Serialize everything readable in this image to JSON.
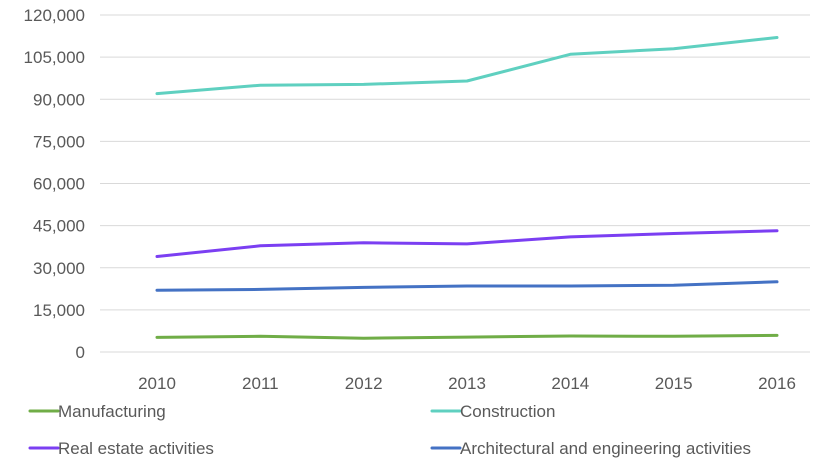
{
  "chart_data": {
    "type": "line",
    "title": "",
    "xlabel": "",
    "ylabel": "",
    "x": [
      "2010",
      "2011",
      "2012",
      "2013",
      "2014",
      "2015",
      "2016"
    ],
    "ylim": [
      0,
      120000
    ],
    "yticks": [
      0,
      15000,
      30000,
      45000,
      60000,
      75000,
      90000,
      105000,
      120000
    ],
    "ytick_labels": [
      "0",
      "15,000",
      "30,000",
      "45,000",
      "60,000",
      "75,000",
      "90,000",
      "105,000",
      "120,000"
    ],
    "grid": true,
    "legend_position": "bottom",
    "series": [
      {
        "name": "Manufacturing",
        "color": "#70ad47",
        "values": [
          5200,
          5600,
          4900,
          5300,
          5700,
          5600,
          5900
        ]
      },
      {
        "name": "Construction",
        "color": "#5fd0c0",
        "values": [
          92000,
          95000,
          95300,
          96500,
          106000,
          108000,
          112000
        ]
      },
      {
        "name": "Real estate activities",
        "color": "#7b3ff2",
        "values": [
          34000,
          37800,
          38900,
          38500,
          41000,
          42200,
          43200
        ]
      },
      {
        "name": "Architectural and engineering activities",
        "color": "#4472c4",
        "values": [
          22000,
          22300,
          23000,
          23500,
          23500,
          23800,
          25000
        ]
      }
    ]
  }
}
